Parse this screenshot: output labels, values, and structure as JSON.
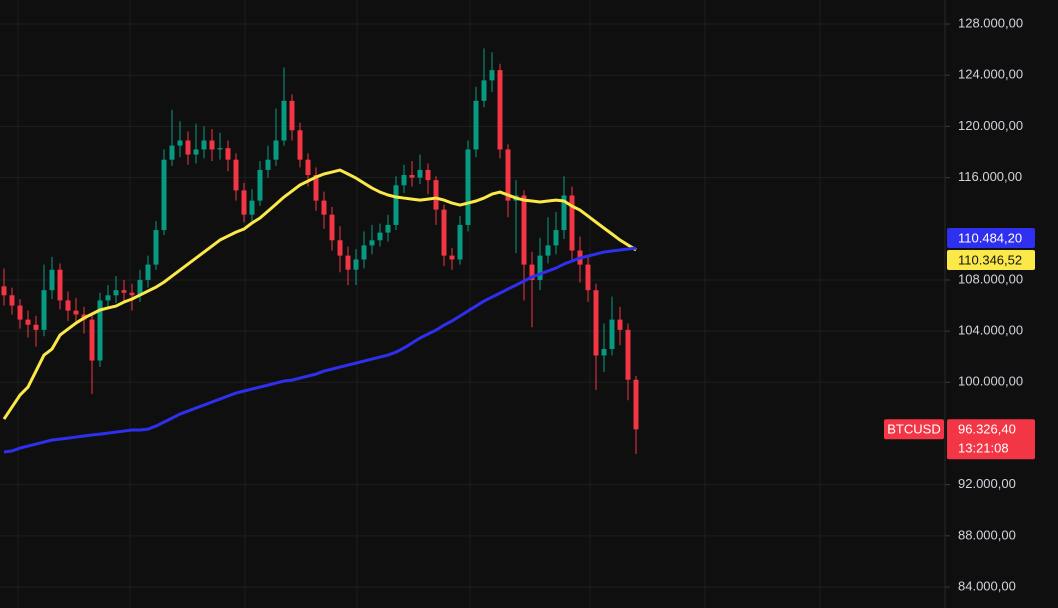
{
  "chart_data": {
    "type": "candlestick",
    "symbol": "BTCUSD",
    "countdown": "13:21:08",
    "close_label": "96.326,40",
    "up_color": "#089981",
    "down_color": "#f23645",
    "grid": true,
    "ylim": [
      82360,
      129880
    ],
    "yticks": [
      {
        "value": 84000,
        "label": "84.000,00"
      },
      {
        "value": 88000,
        "label": "88.000,00"
      },
      {
        "value": 92000,
        "label": "92.000,00"
      },
      {
        "value": 100000,
        "label": "100.000,00"
      },
      {
        "value": 104000,
        "label": "104.000,00"
      },
      {
        "value": 108000,
        "label": "108.000,00"
      },
      {
        "value": 116000,
        "label": "116.000,00"
      },
      {
        "value": 120000,
        "label": "120.000,00"
      },
      {
        "value": 124000,
        "label": "124.000,00"
      },
      {
        "value": 128000,
        "label": "128.000,00"
      }
    ],
    "open": [
      107500,
      106800,
      106000,
      104900,
      104500,
      104100,
      107200,
      108800,
      106400,
      105600,
      105300,
      104900,
      101700,
      106400,
      106800,
      107200,
      107000,
      106800,
      108000,
      109200,
      111900,
      117400,
      118500,
      118900,
      117800,
      118200,
      118900,
      118200,
      118300,
      117400,
      115000,
      113100,
      114200,
      116600,
      117400,
      118900,
      122000,
      119700,
      117400,
      116200,
      114200,
      113100,
      111100,
      109900,
      108800,
      109600,
      110700,
      111100,
      111700,
      112300,
      115400,
      116200,
      116000,
      116600,
      115800,
      113500,
      109900,
      109600,
      112300,
      118200,
      122000,
      123600,
      124400,
      118200,
      114200,
      114600,
      109200,
      108000,
      109900,
      110700,
      111900,
      114600,
      110300,
      109200,
      107200,
      102100,
      102600,
      104900,
      104100,
      100200
    ],
    "high": [
      108900,
      107400,
      106500,
      105600,
      105200,
      109200,
      109800,
      109300,
      107100,
      106600,
      105900,
      105400,
      107000,
      107600,
      108300,
      108000,
      107700,
      108800,
      109900,
      112600,
      118200,
      121300,
      120400,
      119600,
      120200,
      120000,
      119800,
      119500,
      118900,
      117900,
      115600,
      115100,
      117300,
      118500,
      121400,
      124600,
      122500,
      120300,
      117900,
      116800,
      114900,
      113700,
      112200,
      110600,
      110400,
      111800,
      112300,
      112400,
      113100,
      116100,
      117000,
      117300,
      117800,
      117100,
      116100,
      113900,
      110500,
      113000,
      118900,
      123100,
      126100,
      125800,
      124900,
      118600,
      115800,
      115000,
      110200,
      111300,
      112900,
      113300,
      116100,
      115300,
      111400,
      109900,
      107700,
      104600,
      106700,
      105900,
      104600,
      100500
    ],
    "low": [
      106000,
      105300,
      104200,
      103500,
      102800,
      103600,
      106500,
      105700,
      104800,
      104500,
      103800,
      99100,
      101200,
      105900,
      106200,
      106300,
      105600,
      106300,
      107400,
      108800,
      111500,
      116900,
      117600,
      117000,
      117100,
      117500,
      117300,
      117400,
      116500,
      114200,
      112500,
      112600,
      113800,
      116000,
      116900,
      118500,
      118900,
      116800,
      115300,
      113400,
      112000,
      110300,
      108600,
      107600,
      107600,
      108900,
      110000,
      110600,
      111000,
      111900,
      114800,
      115300,
      115500,
      114700,
      112300,
      109100,
      108800,
      109200,
      111800,
      117600,
      121500,
      122700,
      117500,
      112900,
      110100,
      106400,
      104300,
      107200,
      109300,
      110000,
      111200,
      109500,
      107800,
      106300,
      99400,
      100800,
      102100,
      102900,
      98600,
      94400
    ],
    "close": [
      106800,
      106000,
      104900,
      104500,
      104100,
      107200,
      108800,
      106400,
      105600,
      105300,
      104900,
      101700,
      106400,
      106800,
      107200,
      107000,
      106800,
      108000,
      109200,
      111900,
      117400,
      118500,
      118900,
      117800,
      118200,
      118900,
      118200,
      118300,
      117400,
      115000,
      113100,
      114200,
      116600,
      117400,
      118900,
      122000,
      119700,
      117400,
      116200,
      114200,
      113100,
      111100,
      109900,
      108800,
      109600,
      110700,
      111100,
      111700,
      112300,
      115400,
      116200,
      116000,
      116600,
      115800,
      113500,
      109900,
      109600,
      112300,
      118200,
      122000,
      123600,
      124400,
      118200,
      114200,
      114600,
      109200,
      108000,
      109900,
      110700,
      111900,
      114600,
      110300,
      109200,
      107200,
      102100,
      102600,
      104900,
      104100,
      100200,
      96326.4
    ],
    "series": [
      {
        "color": "#fbe94a",
        "last_label": "110.346,52",
        "values": [
          97130,
          98065,
          99000,
          99630,
          100880,
          102130,
          102600,
          103690,
          104160,
          104630,
          105020,
          105340,
          105650,
          105810,
          105960,
          106270,
          106510,
          106820,
          107130,
          107440,
          107830,
          108300,
          108770,
          109240,
          109710,
          110180,
          110650,
          111120,
          111430,
          111740,
          111980,
          112450,
          112840,
          113380,
          113930,
          114480,
          114950,
          115420,
          115730,
          116040,
          116280,
          116430,
          116590,
          116280,
          115960,
          115570,
          115180,
          114870,
          114640,
          114480,
          114400,
          114320,
          114240,
          114320,
          114400,
          114240,
          114010,
          113850,
          114010,
          114170,
          114400,
          114710,
          114870,
          114640,
          114400,
          114240,
          114170,
          114090,
          114170,
          114240,
          114170,
          113770,
          113460,
          112990,
          112520,
          112050,
          111590,
          111120,
          110730,
          110346.52
        ]
      },
      {
        "color": "#2f2ff0",
        "last_label": "110.484,20",
        "values": [
          94550,
          94630,
          94860,
          95020,
          95170,
          95330,
          95490,
          95560,
          95640,
          95720,
          95800,
          95880,
          95950,
          96030,
          96110,
          96190,
          96270,
          96270,
          96340,
          96580,
          96890,
          97200,
          97520,
          97750,
          97990,
          98220,
          98460,
          98690,
          98930,
          99160,
          99320,
          99470,
          99630,
          99780,
          99940,
          100100,
          100170,
          100330,
          100490,
          100640,
          100880,
          101030,
          101190,
          101350,
          101500,
          101660,
          101820,
          101970,
          102130,
          102360,
          102680,
          103070,
          103460,
          103770,
          104080,
          104470,
          104790,
          105180,
          105570,
          105960,
          106350,
          106660,
          106970,
          107290,
          107600,
          107910,
          108230,
          108460,
          108700,
          108930,
          109240,
          109480,
          109710,
          109870,
          110020,
          110180,
          110260,
          110340,
          110420,
          110484.2
        ]
      }
    ]
  }
}
